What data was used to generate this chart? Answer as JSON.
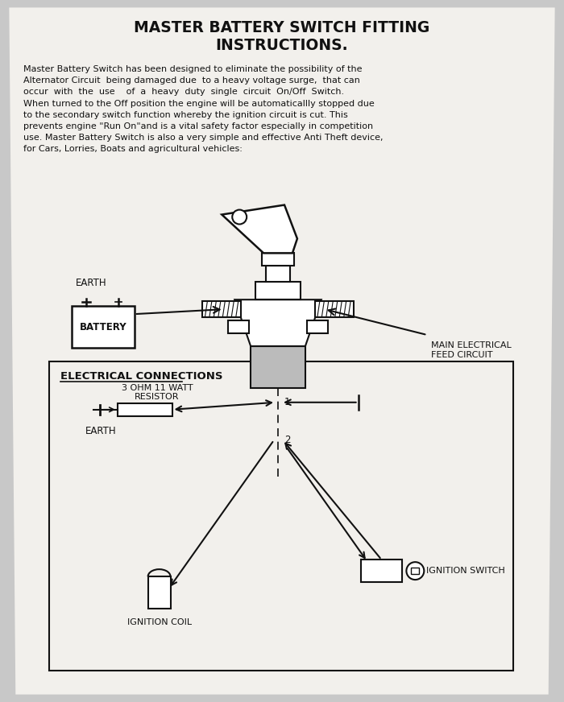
{
  "title": "MASTER BATTERY SWITCH FITTING\nINSTRUCTIONS.",
  "body_text": "Master Battery Switch has been designed to eliminate the possibility of the\nAlternator Circuit  being damaged due  to a heavy voltage surge,  that can\noccur  with  the  use    of  a  heavy  duty  single  circuit  On/Off  Switch.\nWhen turned to the Off position the engine will be automaticallly stopped due\nto the secondary switch function whereby the ignition circuit is cut. This\nprevents engine \"Run On\"and is a vital safety factor especially in competition\nuse. Master Battery Switch is also a very simple and effective Anti Theft device,\nfor Cars, Lorries, Boats and agricultural vehicles:",
  "diagram_title": "ELECTRICAL CONNECTIONS",
  "bg_color": "#c8c8c8",
  "paper_color": "#f2f0ec",
  "line_color": "#111111",
  "text_color": "#111111"
}
